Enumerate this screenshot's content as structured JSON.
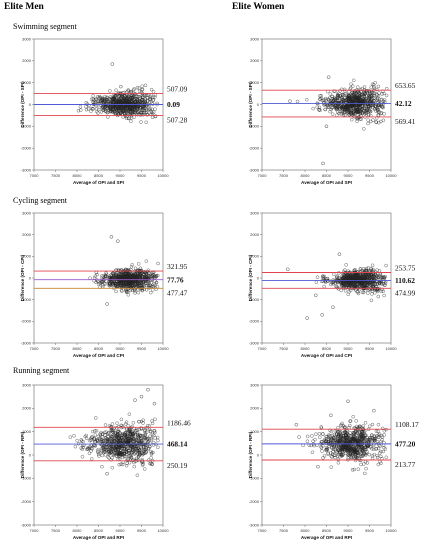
{
  "headers": {
    "men": "Elite Men",
    "women": "Elite Women"
  },
  "segments": {
    "swim": "Swimming segment",
    "cycle": "Cycling segment",
    "run": "Running segment"
  },
  "colors": {
    "limit_line": "#e0454d",
    "mean_line": "#4f58d6",
    "cycle_men_mean_line": "#9b59d0",
    "cycle_men_lower_line": "#c8862e",
    "marker_stroke": "#222222",
    "frame": "#666666"
  },
  "chart_data": [
    {
      "type": "scatter",
      "panel": "swim-men",
      "xlabel": "Average of OPI and SPI",
      "ylabel": "Difference (OPI - SPI)",
      "xlim": [
        7000,
        10000
      ],
      "ylim": [
        -3000,
        3000
      ],
      "xticks": [
        "7000",
        "7500",
        "8000",
        "8500",
        "9000",
        "9500",
        "10000"
      ],
      "yticks": [
        "-3000",
        "-2000",
        "-1000",
        "0",
        "1000",
        "2000",
        "3000"
      ],
      "lines": {
        "upper": 507.09,
        "mean": 0.09,
        "lower": -507.28
      },
      "labels": {
        "upper": "507.09",
        "mean": "0.09",
        "lower": "507.28"
      },
      "cluster": {
        "x_center": 9100,
        "x_spread": 420,
        "y_spread": 280,
        "outliers": [
          [
            8820,
            1850
          ],
          [
            8660,
            -300
          ],
          [
            9020,
            820
          ]
        ]
      }
    },
    {
      "type": "scatter",
      "panel": "swim-women",
      "xlabel": "Average of OPI and SPI",
      "ylabel": "Difference (OPI - SPI)",
      "xlim": [
        7000,
        10000
      ],
      "ylim": [
        -3000,
        3000
      ],
      "xticks": [
        "7000",
        "7500",
        "8000",
        "8500",
        "9000",
        "9500",
        "10000"
      ],
      "yticks": [
        "-3000",
        "-2000",
        "-1000",
        "0",
        "1000",
        "2000",
        "3000"
      ],
      "lines": {
        "upper": 653.65,
        "mean": 42.12,
        "lower": -569.41
      },
      "labels": {
        "upper": "653.65",
        "mean": "42.12",
        "lower": "569.41"
      },
      "cluster": {
        "x_center": 9150,
        "x_spread": 420,
        "y_spread": 320,
        "outliers": [
          [
            8420,
            -2700
          ],
          [
            8550,
            1250
          ],
          [
            7650,
            150
          ],
          [
            8350,
            400
          ],
          [
            8500,
            -1000
          ]
        ]
      }
    },
    {
      "type": "scatter",
      "panel": "cycle-men",
      "xlabel": "Average of OPI and CPI",
      "ylabel": "Difference (OPI - CPI)",
      "xlim": [
        7000,
        10000
      ],
      "ylim": [
        -3000,
        3000
      ],
      "xticks": [
        "7000",
        "7500",
        "8000",
        "8500",
        "9000",
        "9500",
        "10000"
      ],
      "yticks": [
        "-3000",
        "-2000",
        "-1000",
        "0",
        "1000",
        "2000",
        "3000"
      ],
      "lines": {
        "upper": 321.95,
        "mean": -77.76,
        "lower": -477.47
      },
      "labels": {
        "upper": "321.95",
        "mean": "77.76",
        "lower": "477.47"
      },
      "cluster": {
        "x_center": 9200,
        "x_spread": 380,
        "y_spread": 240,
        "outliers": [
          [
            8800,
            1900
          ],
          [
            8950,
            1700
          ],
          [
            8700,
            -1200
          ],
          [
            8450,
            250
          ],
          [
            8600,
            -400
          ]
        ]
      }
    },
    {
      "type": "scatter",
      "panel": "cycle-women",
      "xlabel": "Average of OPI and CPI",
      "ylabel": "Difference (OPI - CPI)",
      "xlim": [
        7000,
        10000
      ],
      "ylim": [
        -3000,
        3000
      ],
      "xticks": [
        "7000",
        "7500",
        "8000",
        "8500",
        "9000",
        "9500",
        "10000"
      ],
      "yticks": [
        "-3000",
        "-2000",
        "-1000",
        "0",
        "1000",
        "2000",
        "3000"
      ],
      "lines": {
        "upper": 253.75,
        "mean": -110.62,
        "lower": -474.99
      },
      "labels": {
        "upper": "253.75",
        "mean": "110.62",
        "lower": "474.99"
      },
      "cluster": {
        "x_center": 9250,
        "x_spread": 370,
        "y_spread": 230,
        "outliers": [
          [
            8050,
            -1850
          ],
          [
            8400,
            -1700
          ],
          [
            8650,
            -1350
          ],
          [
            8250,
            -800
          ],
          [
            8800,
            1100
          ],
          [
            7600,
            400
          ]
        ]
      }
    },
    {
      "type": "scatter",
      "panel": "run-men",
      "xlabel": "Average of OPI and RPI",
      "ylabel": "Difference (OPI - RPI)",
      "xlim": [
        7000,
        10000
      ],
      "ylim": [
        -3000,
        3000
      ],
      "xticks": [
        "7000",
        "7500",
        "8000",
        "8500",
        "9000",
        "9500",
        "10000"
      ],
      "yticks": [
        "-3000",
        "-2000",
        "-1000",
        "0",
        "1000",
        "2000",
        "3000"
      ],
      "lines": {
        "upper": 1186.46,
        "mean": 468.14,
        "lower": -250.19
      },
      "labels": {
        "upper": "1186.46",
        "mean": "468.14",
        "lower": "250.19"
      },
      "cluster": {
        "x_center": 9050,
        "x_spread": 480,
        "y_spread": 420,
        "outliers": [
          [
            9500,
            2500
          ],
          [
            9650,
            2800
          ],
          [
            9350,
            2350
          ],
          [
            8100,
            650
          ],
          [
            8700,
            -800
          ],
          [
            9800,
            2200
          ]
        ]
      }
    },
    {
      "type": "scatter",
      "panel": "run-women",
      "xlabel": "Average of OPI and RPI",
      "ylabel": "Difference (OPI - RPI)",
      "xlim": [
        7000,
        10000
      ],
      "ylim": [
        -3000,
        3000
      ],
      "xticks": [
        "7000",
        "7500",
        "8000",
        "8500",
        "9000",
        "9500",
        "10000"
      ],
      "yticks": [
        "-3000",
        "-2000",
        "-1000",
        "0",
        "1000",
        "2000",
        "3000"
      ],
      "lines": {
        "upper": 1108.17,
        "mean": 477.2,
        "lower": -213.77
      },
      "labels": {
        "upper": "1108.17",
        "mean": "477.20",
        "lower": "213.77"
      },
      "cluster": {
        "x_center": 9100,
        "x_spread": 440,
        "y_spread": 380,
        "outliers": [
          [
            9000,
            2300
          ],
          [
            8600,
            1700
          ],
          [
            7800,
            1300
          ],
          [
            8300,
            -500
          ],
          [
            9600,
            1900
          ]
        ]
      }
    }
  ]
}
